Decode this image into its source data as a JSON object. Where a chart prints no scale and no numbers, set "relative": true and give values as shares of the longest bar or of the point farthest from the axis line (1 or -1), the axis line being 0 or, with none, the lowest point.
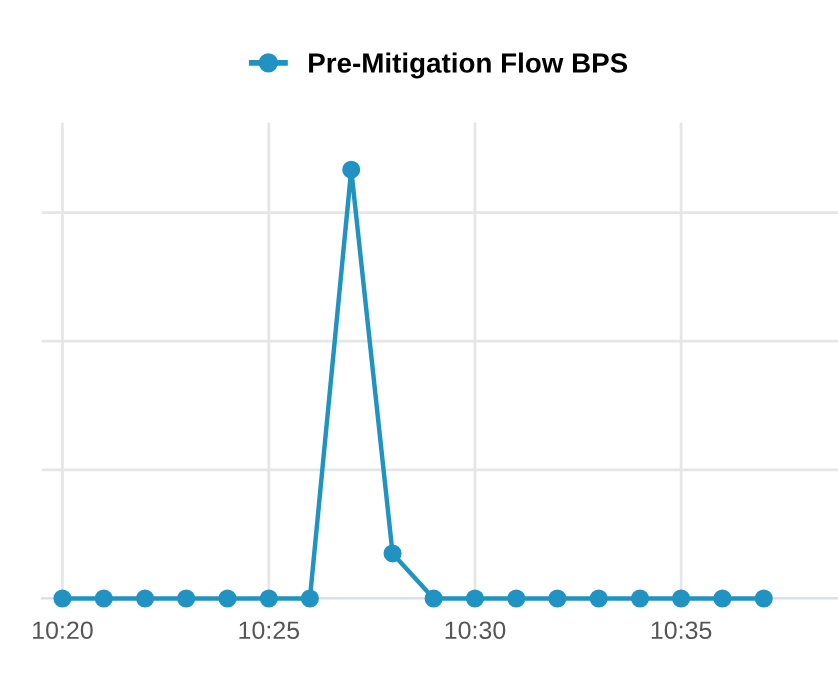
{
  "chart_data": {
    "type": "line",
    "relative": true,
    "x": [
      10.3333,
      10.35,
      10.3667,
      10.3833,
      10.4,
      10.4167,
      10.4333,
      10.45,
      10.4667,
      10.4833,
      10.5,
      10.5167,
      10.5333,
      10.55,
      10.5667,
      10.5833,
      10.6,
      10.6167
    ],
    "series": [
      {
        "name": "Pre-Mitigation Flow BPS",
        "color": "#2093c3",
        "values": [
          0,
          0,
          0,
          0,
          0,
          0,
          0,
          1,
          0.105,
          0,
          0,
          0,
          0,
          0,
          0,
          0,
          0,
          0
        ]
      }
    ],
    "xlim": [
      10.325,
      10.6467
    ],
    "xticks": [
      {
        "value": 10.3333,
        "label": "10:20"
      },
      {
        "value": 10.4167,
        "label": "10:25"
      },
      {
        "value": 10.5,
        "label": "10:30"
      },
      {
        "value": 10.5833,
        "label": "10:35"
      }
    ],
    "grid": true,
    "legend": "top",
    "marker": "circle",
    "line_style": "solid",
    "tick_labels": "x"
  }
}
